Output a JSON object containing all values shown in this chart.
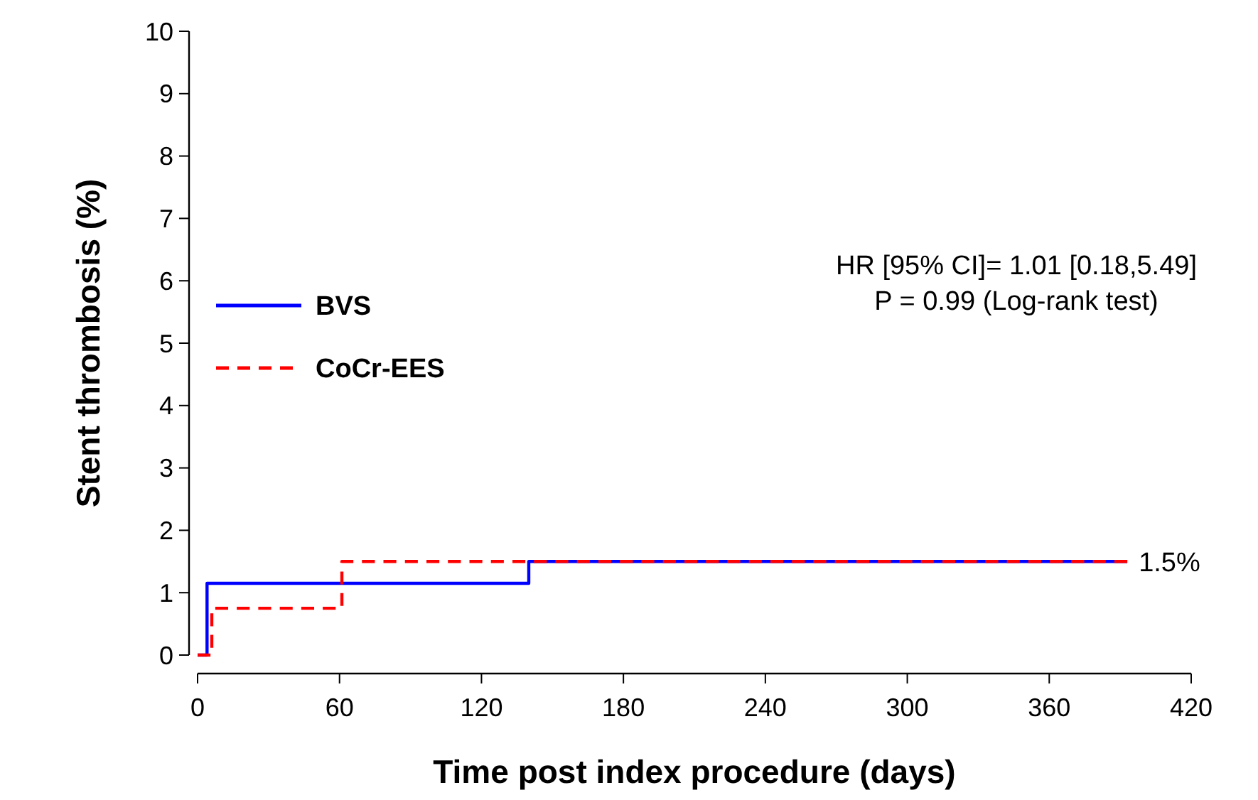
{
  "chart_data": {
    "type": "step",
    "xlabel": "Time post index procedure (days)",
    "ylabel": "Stent thrombosis (%)",
    "xlim": [
      0,
      420
    ],
    "xticks": [
      0,
      60,
      120,
      180,
      240,
      300,
      360,
      420
    ],
    "ylim": [
      0,
      10
    ],
    "yticks": [
      0,
      1,
      2,
      3,
      4,
      5,
      6,
      7,
      8,
      9,
      10
    ],
    "series": [
      {
        "name": "BVS",
        "color": "#0000ff",
        "line_style": "solid",
        "x": [
          0,
          4,
          140,
          393
        ],
        "values": [
          0,
          1.15,
          1.5,
          1.5
        ]
      },
      {
        "name": "CoCr-EES",
        "color": "#ff0000",
        "line_style": "dashed",
        "x": [
          0,
          6,
          61,
          393
        ],
        "values": [
          0,
          0.75,
          1.5,
          1.5
        ]
      }
    ],
    "annotations": [
      {
        "text": "1.5%",
        "x": 393,
        "y": 1.5
      },
      "HR [95% CI]= 1.01 [0.18,5.49]",
      "P = 0.99 (Log-rank test)"
    ],
    "legend": "left",
    "grid": false
  }
}
